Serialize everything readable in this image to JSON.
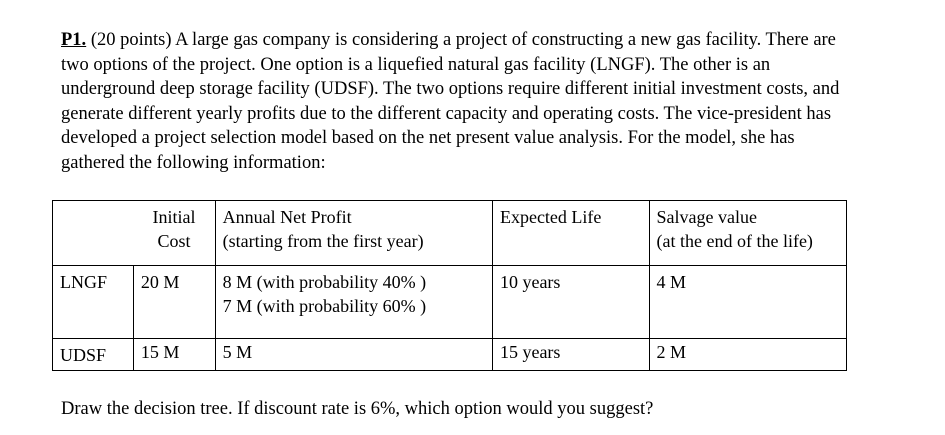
{
  "problem": {
    "label": "P1.",
    "text": " (20 points) A large gas company is considering a project of constructing a new gas facility. There are two options of the project. One option is a liquefied natural gas facility (LNGF). The other is an underground deep storage facility (UDSF). The two options require different initial investment costs, and generate different yearly profits due to the different capacity and operating costs. The vice-president has developed a project selection model based on the net present value analysis. For the model, she has gathered the following information:"
  },
  "table": {
    "headers": {
      "initial_cost": [
        "Initial",
        "Cost"
      ],
      "annual_net_profit": [
        "Annual Net Profit",
        "(starting from the first year)"
      ],
      "expected_life": "Expected Life",
      "salvage_value": [
        "Salvage value",
        "(at the end of the life)"
      ]
    },
    "rows": [
      {
        "option": "LNGF",
        "initial_cost": "20 M",
        "annual_net_profit": [
          "8 M (with probability 40% )",
          "7 M (with probability 60% )"
        ],
        "expected_life": "10 years",
        "salvage_value": "4 M"
      },
      {
        "option": "UDSF",
        "initial_cost": "15 M",
        "annual_net_profit": [
          "5 M"
        ],
        "expected_life": "15 years",
        "salvage_value": "2 M"
      }
    ]
  },
  "question": "Draw the decision tree. If discount rate is 6%, which option would you suggest?"
}
